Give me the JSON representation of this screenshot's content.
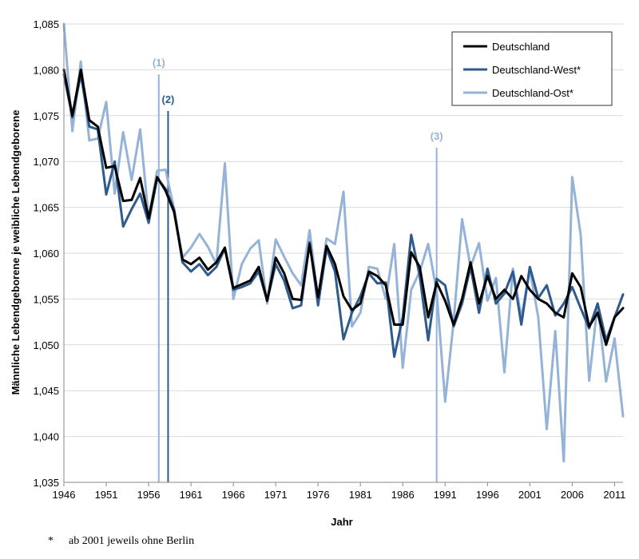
{
  "chart_data": {
    "type": "line",
    "title": "",
    "xlabel": "Jahr",
    "ylabel": "Männliche Lebendgeborene je weibliche Lebendgeborene",
    "xlim": [
      1946,
      2012
    ],
    "ylim": [
      1.035,
      1.085
    ],
    "y_ticks": [
      1.035,
      1.04,
      1.045,
      1.05,
      1.055,
      1.06,
      1.065,
      1.07,
      1.075,
      1.08,
      1.085
    ],
    "y_tick_labels": [
      "1,035",
      "1,040",
      "1,045",
      "1,050",
      "1,055",
      "1,060",
      "1,065",
      "1,070",
      "1,075",
      "1,080",
      "1,085"
    ],
    "x_ticks": [
      1946,
      1951,
      1956,
      1961,
      1966,
      1971,
      1976,
      1981,
      1986,
      1991,
      1996,
      2001,
      2006,
      2011
    ],
    "x_tick_labels": [
      "1946",
      "1951",
      "1956",
      "1961",
      "1966",
      "1971",
      "1976",
      "1981",
      "1986",
      "1991",
      "1996",
      "2001",
      "2006",
      "2011"
    ],
    "grid": true,
    "legend_position": "top-right",
    "x": [
      1946,
      1947,
      1948,
      1949,
      1950,
      1951,
      1952,
      1953,
      1954,
      1955,
      1956,
      1957,
      1958,
      1959,
      1960,
      1961,
      1962,
      1963,
      1964,
      1965,
      1966,
      1967,
      1968,
      1969,
      1970,
      1971,
      1972,
      1973,
      1974,
      1975,
      1976,
      1977,
      1978,
      1979,
      1980,
      1981,
      1982,
      1983,
      1984,
      1985,
      1986,
      1987,
      1988,
      1989,
      1990,
      1991,
      1992,
      1993,
      1994,
      1995,
      1996,
      1997,
      1998,
      1999,
      2000,
      2001,
      2002,
      2003,
      2004,
      2005,
      2006,
      2007,
      2008,
      2009,
      2010,
      2011,
      2012
    ],
    "series": [
      {
        "name": "Deutschland",
        "color": "#000000",
        "values": [
          1.08,
          1.075,
          1.08,
          1.0745,
          1.0738,
          1.0693,
          1.0695,
          1.0657,
          1.0658,
          1.0682,
          1.0638,
          1.0683,
          1.0668,
          1.0645,
          1.0593,
          1.0588,
          1.0595,
          1.0582,
          1.059,
          1.0606,
          1.0562,
          1.0566,
          1.057,
          1.0585,
          1.0548,
          1.0595,
          1.0578,
          1.055,
          1.0549,
          1.061,
          1.0552,
          1.0608,
          1.0588,
          1.0553,
          1.0538,
          1.0545,
          1.058,
          1.0575,
          1.0565,
          1.0522,
          1.0522,
          1.0601,
          1.0585,
          1.053,
          1.0568,
          1.0548,
          1.0522,
          1.055,
          1.059,
          1.0545,
          1.0575,
          1.055,
          1.056,
          1.055,
          1.0575,
          1.056,
          1.055,
          1.0545,
          1.0535,
          1.053,
          1.0578,
          1.0563,
          1.052,
          1.0535,
          1.05,
          1.053,
          1.054
        ]
      },
      {
        "name": "Deutschland-West*",
        "color": "#2f5a8c",
        "values": [
          1.0795,
          1.0748,
          1.0795,
          1.0738,
          1.0735,
          1.0664,
          1.07,
          1.0629,
          1.0648,
          1.0665,
          1.0633,
          1.0682,
          1.067,
          1.0648,
          1.059,
          1.058,
          1.0588,
          1.0576,
          1.0585,
          1.0605,
          1.056,
          1.0563,
          1.0567,
          1.058,
          1.0548,
          1.0588,
          1.057,
          1.054,
          1.0543,
          1.0612,
          1.0543,
          1.0605,
          1.058,
          1.0506,
          1.0535,
          1.0553,
          1.0578,
          1.0567,
          1.0568,
          1.0487,
          1.053,
          1.062,
          1.0575,
          1.0505,
          1.0572,
          1.0565,
          1.052,
          1.0545,
          1.0585,
          1.0535,
          1.0583,
          1.0545,
          1.0556,
          1.058,
          1.0522,
          1.0585,
          1.0551,
          1.0565,
          1.0532,
          1.0545,
          1.0563,
          1.054,
          1.0518,
          1.0545,
          1.0505,
          1.053,
          1.0555
        ]
      },
      {
        "name": "Deutschland-Ost*",
        "color": "#95b3d7",
        "values": [
          1.085,
          1.0733,
          1.0809,
          1.0723,
          1.0725,
          1.0765,
          1.0665,
          1.0732,
          1.068,
          1.0735,
          1.0638,
          1.069,
          1.0691,
          1.0648,
          1.0595,
          1.0606,
          1.0621,
          1.0607,
          1.0588,
          1.0698,
          1.055,
          1.0588,
          1.0605,
          1.0614,
          1.0545,
          1.0615,
          1.0596,
          1.0578,
          1.0565,
          1.0625,
          1.055,
          1.0616,
          1.061,
          1.0667,
          1.052,
          1.0535,
          1.0585,
          1.0583,
          1.055,
          1.061,
          1.0475,
          1.056,
          1.058,
          1.061,
          1.0558,
          1.0438,
          1.0525,
          1.0637,
          1.0585,
          1.0611,
          1.0548,
          1.0573,
          1.047,
          1.0583,
          1.053,
          1.0582,
          1.053,
          1.0408,
          1.0515,
          1.0373,
          1.0683,
          1.062,
          1.0461,
          1.0545,
          1.046,
          1.0507,
          1.0422
        ]
      }
    ],
    "markers": [
      {
        "label": "(1)",
        "x": 1957.2,
        "top": 1.0795,
        "color": "#95b3d7"
      },
      {
        "label": "(2)",
        "x": 1958.3,
        "top": 1.0755,
        "color": "#2f5a8c"
      },
      {
        "label": "(3)",
        "x": 1990.0,
        "top": 1.0715,
        "color": "#95b3d7"
      }
    ]
  },
  "footnote": {
    "symbol": "*",
    "text": "ab 2001 jeweils ohne Berlin"
  }
}
